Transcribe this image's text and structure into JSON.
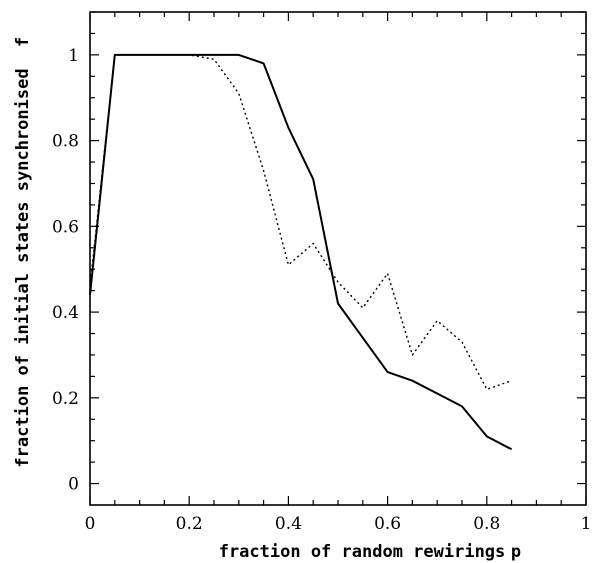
{
  "chart_data": {
    "type": "line",
    "title": "",
    "xlabel": "fraction of random rewirings",
    "xlabel_symbol": "p",
    "ylabel": "fraction of initial states synchronised",
    "ylabel_symbol": "f",
    "xlim": [
      0,
      1
    ],
    "ylim": [
      -0.05,
      1.1
    ],
    "x_ticks": [
      0,
      0.2,
      0.4,
      0.6,
      0.8,
      1
    ],
    "x_tick_labels": [
      "0",
      "0.2",
      "0.4",
      "0.6",
      "0.8",
      "1"
    ],
    "y_ticks": [
      0,
      0.2,
      0.4,
      0.6,
      0.8,
      1
    ],
    "y_tick_labels": [
      "0",
      "0.2",
      "0.4",
      "0.6",
      "0.8",
      "1"
    ],
    "grid": false,
    "series": [
      {
        "style": "solid",
        "x": [
          0,
          0.05,
          0.1,
          0.15,
          0.2,
          0.25,
          0.3,
          0.35,
          0.4,
          0.45,
          0.5,
          0.55,
          0.6,
          0.65,
          0.7,
          0.75,
          0.8,
          0.85
        ],
        "y": [
          0.44,
          1.0,
          1.0,
          1.0,
          1.0,
          1.0,
          1.0,
          0.98,
          0.83,
          0.71,
          0.42,
          0.34,
          0.26,
          0.24,
          0.21,
          0.18,
          0.11,
          0.08
        ]
      },
      {
        "style": "dotted",
        "x": [
          0,
          0.05,
          0.1,
          0.15,
          0.2,
          0.25,
          0.3,
          0.35,
          0.4,
          0.45,
          0.5,
          0.55,
          0.6,
          0.65,
          0.7,
          0.75,
          0.8,
          0.85
        ],
        "y": [
          0.46,
          1.0,
          1.0,
          1.0,
          1.0,
          0.99,
          0.91,
          0.73,
          0.51,
          0.56,
          0.47,
          0.41,
          0.49,
          0.3,
          0.38,
          0.33,
          0.22,
          0.24
        ]
      }
    ]
  }
}
